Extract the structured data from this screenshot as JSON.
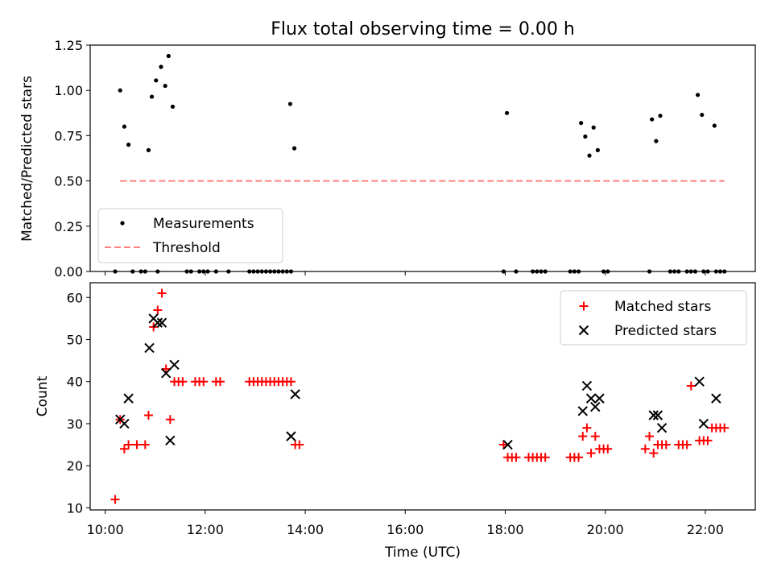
{
  "title": "Flux total observing time = 0.00 h",
  "xlabel": "Time (UTC)",
  "x_tick_labels": [
    "10:00",
    "12:00",
    "14:00",
    "16:00",
    "18:00",
    "20:00",
    "22:00"
  ],
  "colors": {
    "measurements": "#000000",
    "threshold": "#ff8080",
    "matched": "#ff0000",
    "predicted": "#000000"
  },
  "chart_data": [
    {
      "type": "scatter",
      "panel": "top",
      "ylabel": "Matched/Predicted stars",
      "xlim": [
        "09:42",
        "23:00"
      ],
      "ylim": [
        0,
        1.25
      ],
      "y_tick_labels": [
        "0.00",
        "0.25",
        "0.50",
        "0.75",
        "1.00",
        "1.25"
      ],
      "legend_placement": "lower-left",
      "series": [
        {
          "name": "Measurements",
          "marker": "dot",
          "points": [
            [
              "10:18",
              1.0
            ],
            [
              "10:23",
              0.8
            ],
            [
              "10:28",
              0.7
            ],
            [
              "10:52",
              0.67
            ],
            [
              "10:56",
              0.965
            ],
            [
              "11:01",
              1.055
            ],
            [
              "11:07",
              1.13
            ],
            [
              "11:12",
              1.025
            ],
            [
              "11:16",
              1.19
            ],
            [
              "11:21",
              0.91
            ],
            [
              "13:42",
              0.925
            ],
            [
              "13:47",
              0.68
            ],
            [
              "18:02",
              0.875
            ],
            [
              "19:31",
              0.82
            ],
            [
              "19:36",
              0.745
            ],
            [
              "19:41",
              0.64
            ],
            [
              "19:46",
              0.795
            ],
            [
              "19:51",
              0.67
            ],
            [
              "20:56",
              0.84
            ],
            [
              "21:01",
              0.72
            ],
            [
              "21:06",
              0.86
            ],
            [
              "21:51",
              0.975
            ],
            [
              "21:56",
              0.865
            ],
            [
              "22:11",
              0.805
            ],
            [
              "10:12",
              0
            ],
            [
              "10:33",
              0
            ],
            [
              "10:43",
              0
            ],
            [
              "10:48",
              0
            ],
            [
              "11:03",
              0
            ],
            [
              "11:38",
              0
            ],
            [
              "11:43",
              0
            ],
            [
              "11:53",
              0
            ],
            [
              "11:58",
              0
            ],
            [
              "12:03",
              0
            ],
            [
              "12:13",
              0
            ],
            [
              "12:28",
              0
            ],
            [
              "12:53",
              0
            ],
            [
              "12:58",
              0
            ],
            [
              "13:03",
              0
            ],
            [
              "13:08",
              0
            ],
            [
              "13:13",
              0
            ],
            [
              "13:18",
              0
            ],
            [
              "13:23",
              0
            ],
            [
              "13:28",
              0
            ],
            [
              "13:33",
              0
            ],
            [
              "13:38",
              0
            ],
            [
              "13:43",
              0
            ],
            [
              "17:58",
              0
            ],
            [
              "18:13",
              0
            ],
            [
              "18:33",
              0
            ],
            [
              "18:38",
              0
            ],
            [
              "18:43",
              0
            ],
            [
              "18:48",
              0
            ],
            [
              "19:18",
              0
            ],
            [
              "19:23",
              0
            ],
            [
              "19:28",
              0
            ],
            [
              "19:58",
              0
            ],
            [
              "20:03",
              0
            ],
            [
              "20:53",
              0
            ],
            [
              "21:18",
              0
            ],
            [
              "21:23",
              0
            ],
            [
              "21:28",
              0
            ],
            [
              "21:38",
              0
            ],
            [
              "21:43",
              0
            ],
            [
              "21:48",
              0
            ],
            [
              "21:58",
              0
            ],
            [
              "22:03",
              0
            ],
            [
              "22:13",
              0
            ],
            [
              "22:18",
              0
            ],
            [
              "22:23",
              0
            ]
          ]
        },
        {
          "name": "Threshold",
          "style": "dashed-line",
          "points": [
            [
              "10:18",
              0.5
            ],
            [
              "22:23",
              0.5
            ]
          ]
        }
      ]
    },
    {
      "type": "scatter",
      "panel": "bottom",
      "ylabel": "Count",
      "xlim": [
        "09:42",
        "23:00"
      ],
      "ylim": [
        9.5,
        63.5
      ],
      "y_tick_labels": [
        "10",
        "20",
        "30",
        "40",
        "50",
        "60"
      ],
      "legend_placement": "top-right",
      "series": [
        {
          "name": "Matched stars",
          "marker": "plus",
          "points": [
            [
              "10:12",
              12
            ],
            [
              "10:18",
              31
            ],
            [
              "10:23",
              24
            ],
            [
              "10:28",
              25
            ],
            [
              "10:38",
              25
            ],
            [
              "10:48",
              25
            ],
            [
              "10:52",
              32
            ],
            [
              "10:58",
              53
            ],
            [
              "11:03",
              57
            ],
            [
              "11:08",
              61
            ],
            [
              "11:13",
              43
            ],
            [
              "11:18",
              31
            ],
            [
              "11:23",
              40
            ],
            [
              "11:28",
              40
            ],
            [
              "11:33",
              40
            ],
            [
              "11:48",
              40
            ],
            [
              "11:53",
              40
            ],
            [
              "11:58",
              40
            ],
            [
              "12:13",
              40
            ],
            [
              "12:18",
              40
            ],
            [
              "12:53",
              40
            ],
            [
              "12:58",
              40
            ],
            [
              "13:03",
              40
            ],
            [
              "13:08",
              40
            ],
            [
              "13:13",
              40
            ],
            [
              "13:18",
              40
            ],
            [
              "13:23",
              40
            ],
            [
              "13:28",
              40
            ],
            [
              "13:33",
              40
            ],
            [
              "13:38",
              40
            ],
            [
              "13:43",
              40
            ],
            [
              "13:48",
              25
            ],
            [
              "13:53",
              25
            ],
            [
              "17:58",
              25
            ],
            [
              "18:03",
              22
            ],
            [
              "18:08",
              22
            ],
            [
              "18:13",
              22
            ],
            [
              "18:28",
              22
            ],
            [
              "18:33",
              22
            ],
            [
              "18:38",
              22
            ],
            [
              "18:43",
              22
            ],
            [
              "18:48",
              22
            ],
            [
              "19:18",
              22
            ],
            [
              "19:23",
              22
            ],
            [
              "19:28",
              22
            ],
            [
              "19:33",
              27
            ],
            [
              "19:38",
              29
            ],
            [
              "19:43",
              23
            ],
            [
              "19:48",
              27
            ],
            [
              "19:53",
              24
            ],
            [
              "19:58",
              24
            ],
            [
              "20:03",
              24
            ],
            [
              "20:48",
              24
            ],
            [
              "20:53",
              27
            ],
            [
              "20:58",
              23
            ],
            [
              "21:03",
              25
            ],
            [
              "21:08",
              25
            ],
            [
              "21:13",
              25
            ],
            [
              "21:28",
              25
            ],
            [
              "21:33",
              25
            ],
            [
              "21:38",
              25
            ],
            [
              "21:43",
              39
            ],
            [
              "21:53",
              26
            ],
            [
              "21:58",
              26
            ],
            [
              "22:03",
              26
            ],
            [
              "22:08",
              29
            ],
            [
              "22:13",
              29
            ],
            [
              "22:18",
              29
            ],
            [
              "22:23",
              29
            ]
          ]
        },
        {
          "name": "Predicted stars",
          "marker": "x",
          "points": [
            [
              "10:18",
              31
            ],
            [
              "10:23",
              30
            ],
            [
              "10:28",
              36
            ],
            [
              "10:53",
              48
            ],
            [
              "10:58",
              55
            ],
            [
              "11:03",
              54
            ],
            [
              "11:08",
              54
            ],
            [
              "11:13",
              42
            ],
            [
              "11:18",
              26
            ],
            [
              "11:23",
              44
            ],
            [
              "13:43",
              27
            ],
            [
              "13:48",
              37
            ],
            [
              "18:03",
              25
            ],
            [
              "19:33",
              33
            ],
            [
              "19:38",
              39
            ],
            [
              "19:43",
              36
            ],
            [
              "19:48",
              34
            ],
            [
              "19:53",
              36
            ],
            [
              "20:58",
              32
            ],
            [
              "21:03",
              32
            ],
            [
              "21:08",
              29
            ],
            [
              "21:53",
              40
            ],
            [
              "21:58",
              30
            ],
            [
              "22:13",
              36
            ]
          ]
        }
      ]
    }
  ]
}
